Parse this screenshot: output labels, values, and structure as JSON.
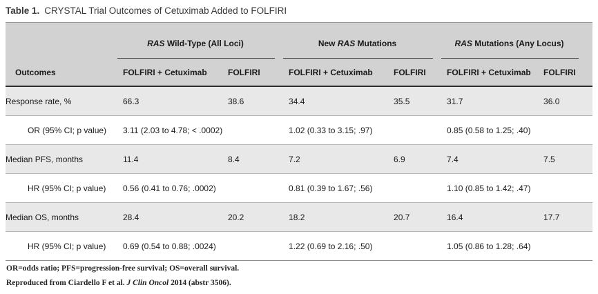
{
  "title": {
    "label": "Table 1.",
    "caption": "CRYSTAL Trial Outcomes of Cetuximab Added to FOLFIRI"
  },
  "table": {
    "outcomes_header": "Outcomes",
    "groups": [
      {
        "label_parts": [
          {
            "t": "RAS",
            "i": true
          },
          {
            "t": " Wild-Type (All Loci)"
          }
        ],
        "subcols": [
          "FOLFIRI + Cetuximab",
          "FOLFIRI"
        ]
      },
      {
        "label_parts": [
          {
            "t": "New "
          },
          {
            "t": "RAS",
            "i": true
          },
          {
            "t": " Mutations"
          }
        ],
        "subcols": [
          "FOLFIRI + Cetuximab",
          "FOLFIRI"
        ]
      },
      {
        "label_parts": [
          {
            "t": "RAS",
            "i": true
          },
          {
            "t": " Mutations (Any Locus)"
          }
        ],
        "subcols": [
          "FOLFIRI + Cetuximab",
          "FOLFIRI"
        ]
      }
    ],
    "rows": [
      {
        "type": "outcome",
        "label": "Response rate, %",
        "values": [
          "66.3",
          "38.6",
          "34.4",
          "35.5",
          "31.7",
          "36.0"
        ]
      },
      {
        "type": "sub",
        "label": "OR (95% CI; p value)",
        "values": [
          "3.11 (2.03 to 4.78; < .0002)",
          "1.02 (0.33 to 3.15; .97)",
          "0.85 (0.58 to 1.25; .40)"
        ]
      },
      {
        "type": "outcome",
        "label": "Median PFS, months",
        "values": [
          "11.4",
          "8.4",
          "7.2",
          "6.9",
          "7.4",
          "7.5"
        ]
      },
      {
        "type": "sub",
        "label": "HR (95% CI; p value)",
        "values": [
          "0.56 (0.41 to 0.76; .0002)",
          "0.81 (0.39 to 1.67; .56)",
          "1.10 (0.85 to 1.42; .47)"
        ]
      },
      {
        "type": "outcome",
        "label": "Median OS, months",
        "values": [
          "28.4",
          "20.2",
          "18.2",
          "20.7",
          "16.4",
          "17.7"
        ]
      },
      {
        "type": "sub",
        "label": "HR (95% CI; p value)",
        "values": [
          "0.69 (0.54 to 0.88; .0024)",
          "1.22 (0.69 to 2.16; .50)",
          "1.05 (0.86 to 1.28; .64)"
        ]
      }
    ]
  },
  "footnotes": {
    "line1_parts": [
      {
        "t": "OR=odds ratio; PFS=progression-free survival; OS=overall survival."
      }
    ],
    "line2_parts": [
      {
        "t": "Reproduced from Ciardello F et al. "
      },
      {
        "t": "J Clin Oncol",
        "i": true
      },
      {
        "t": " 2014 (abstr 3506)."
      }
    ]
  },
  "colors": {
    "header_bg": "#d2d2d2",
    "shaded_row_bg": "#e8e8e8",
    "plain_row_bg": "#ffffff",
    "header_rule_dark": "#2b2b2b",
    "row_rule_light": "#b5b5b5"
  }
}
